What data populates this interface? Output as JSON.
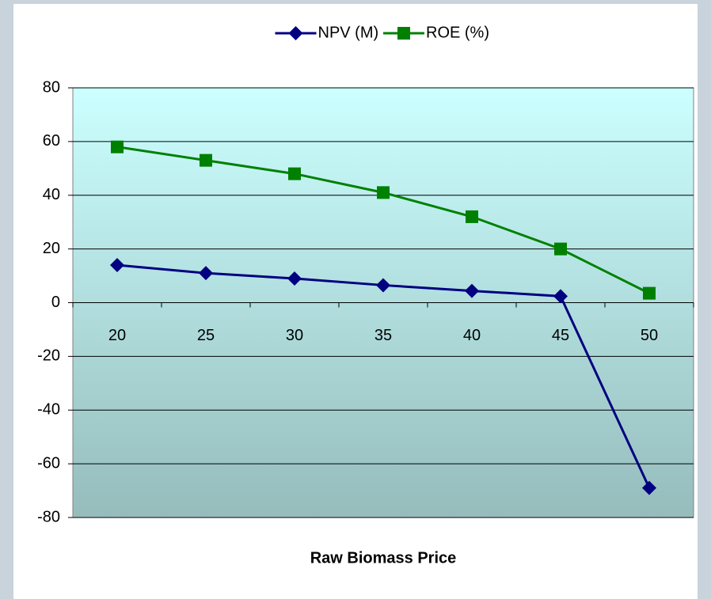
{
  "chart_data": {
    "type": "line",
    "x_label": "Raw Biomass Price",
    "categories": [
      "20",
      "25",
      "30",
      "35",
      "40",
      "45",
      "50"
    ],
    "series": [
      {
        "name": "NPV (M)",
        "color": "#000080",
        "marker": "diamond",
        "values": [
          14,
          11,
          9,
          6.5,
          4.4,
          2.4,
          -69
        ]
      },
      {
        "name": "ROE (%)",
        "color": "#008000",
        "marker": "square",
        "values": [
          58,
          53,
          48,
          41,
          32,
          20,
          3.5
        ]
      }
    ],
    "ylim": [
      -80,
      80
    ],
    "yticks": [
      -80,
      -60,
      -40,
      -20,
      0,
      20,
      40,
      60,
      80
    ],
    "grid": true,
    "legend": "top"
  }
}
